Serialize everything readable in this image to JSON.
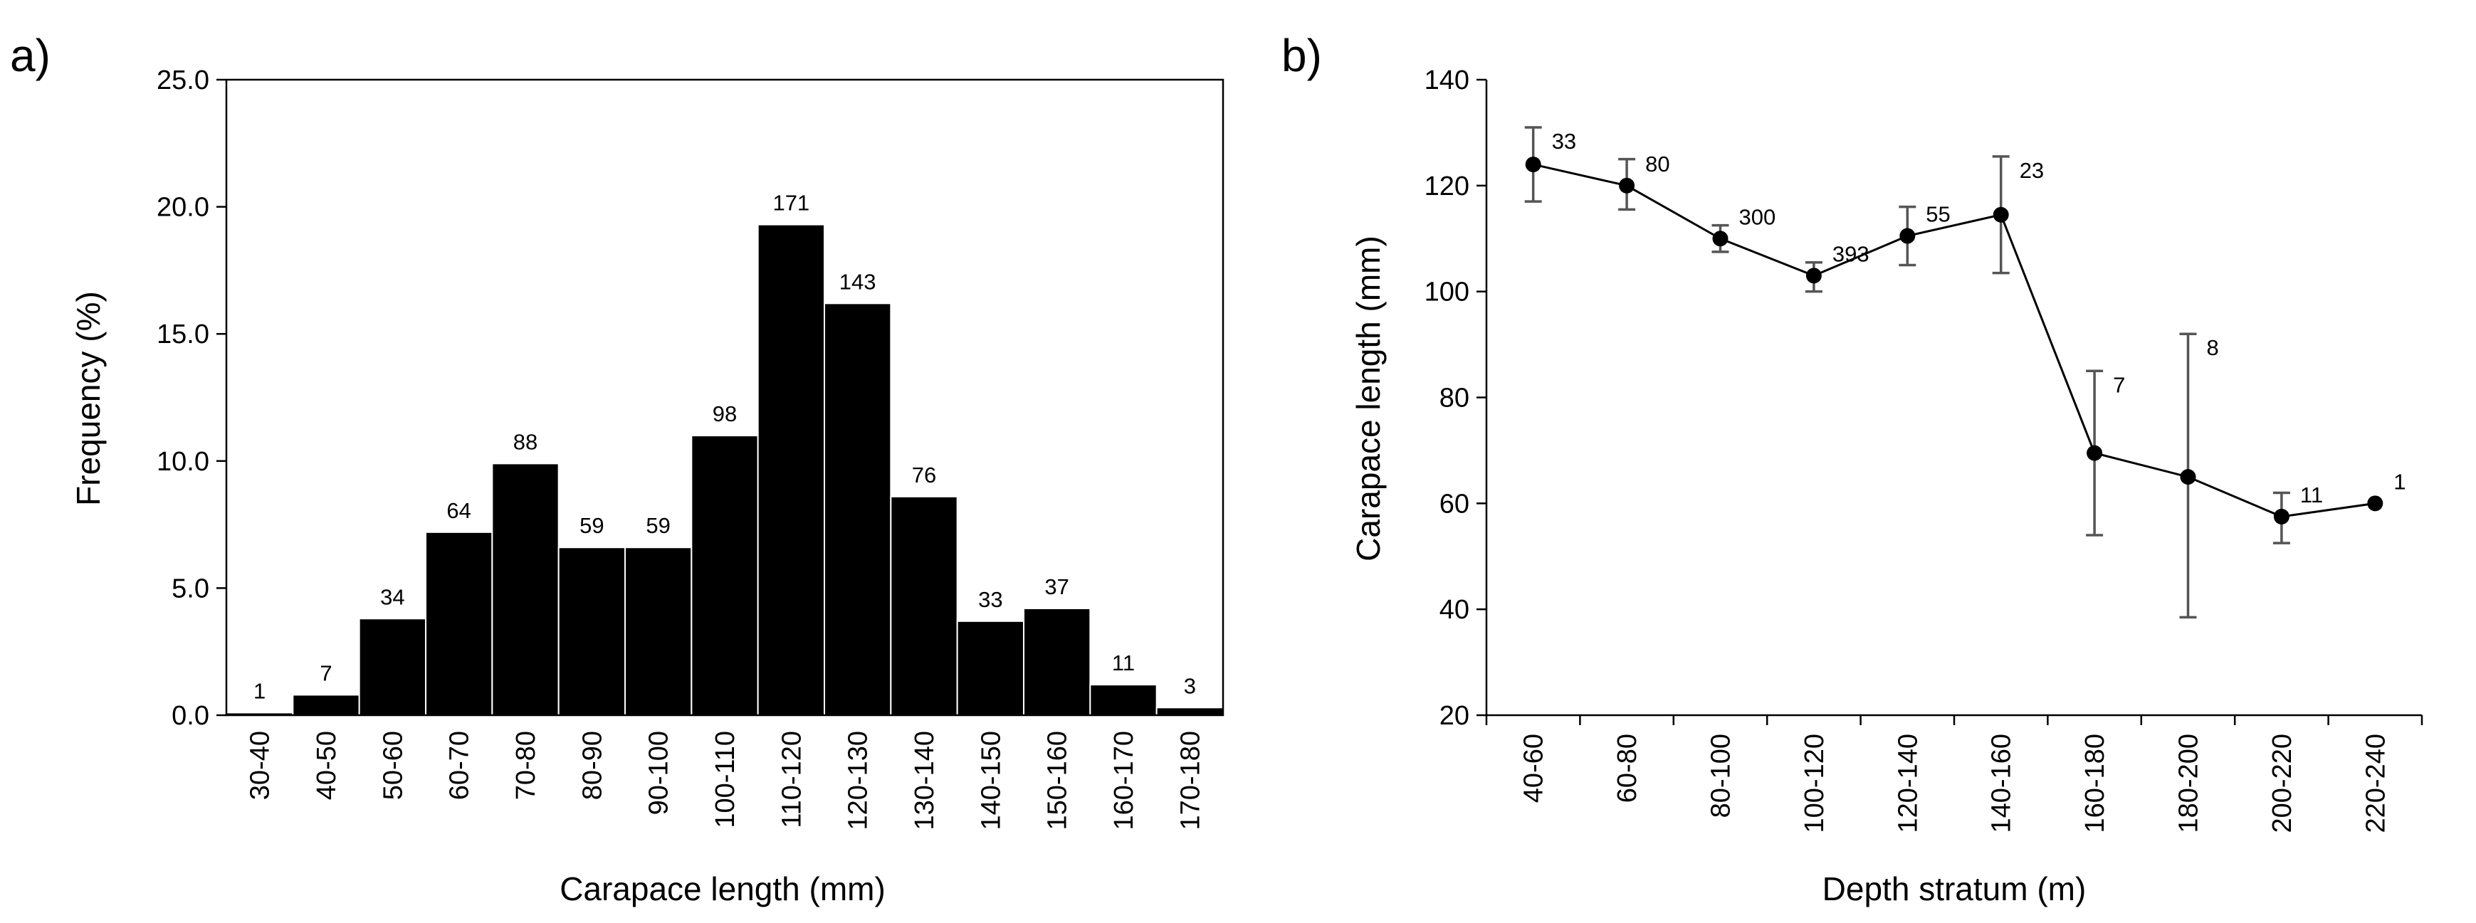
{
  "chart_data": [
    {
      "type": "bar",
      "panel_label": "a)",
      "title": "",
      "xlabel": "Carapace length (mm)",
      "ylabel": "Frequency (%)",
      "ylim": [
        0,
        25
      ],
      "yticks": [
        "0.0",
        "5.0",
        "10.0",
        "15.0",
        "20.0",
        "25.0"
      ],
      "categories": [
        "30-40",
        "40-50",
        "50-60",
        "60-70",
        "70-80",
        "80-90",
        "90-100",
        "100-110",
        "110-120",
        "120-130",
        "130-140",
        "140-150",
        "150-160",
        "160-170",
        "170-180"
      ],
      "values": [
        0.1,
        0.8,
        3.8,
        7.2,
        9.9,
        6.6,
        6.6,
        11.0,
        19.3,
        16.2,
        8.6,
        3.7,
        4.2,
        1.2,
        0.3
      ],
      "data_labels": [
        "1",
        "7",
        "34",
        "64",
        "88",
        "59",
        "59",
        "98",
        "171",
        "143",
        "76",
        "33",
        "37",
        "11",
        "3"
      ],
      "grid": false,
      "bar_color": "#000000"
    },
    {
      "type": "line",
      "panel_label": "b)",
      "title": "",
      "xlabel": "Depth stratum (m)",
      "ylabel": "Carapace length (mm)",
      "ylim": [
        20,
        140
      ],
      "yticks": [
        "20",
        "40",
        "60",
        "80",
        "100",
        "120",
        "140"
      ],
      "categories": [
        "40-60",
        "60-80",
        "80-100",
        "100-120",
        "120-140",
        "140-160",
        "160-180",
        "180-200",
        "200-220",
        "220-240"
      ],
      "values": [
        124,
        120,
        110,
        103,
        110.5,
        114.5,
        69.5,
        65,
        57.5,
        60
      ],
      "error_low": [
        117,
        115.5,
        107.5,
        100,
        105,
        103.5,
        54,
        38.5,
        52.5,
        60
      ],
      "error_high": [
        131,
        125,
        112.5,
        105.5,
        116,
        125.5,
        85,
        92,
        62,
        60
      ],
      "data_labels": [
        "33",
        "80",
        "300",
        "393",
        "55",
        "23",
        "7",
        "8",
        "11",
        "1"
      ],
      "grid": false,
      "line_color": "#000000",
      "error_color": "#555555"
    }
  ]
}
